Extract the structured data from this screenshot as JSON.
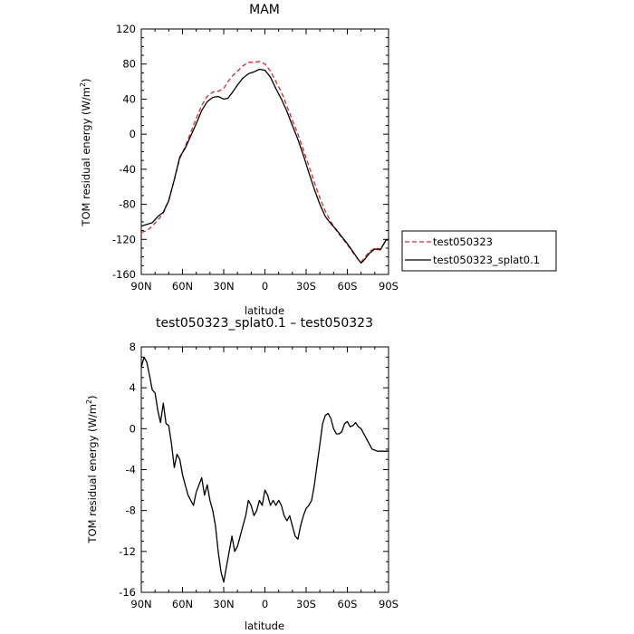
{
  "chart_data": [
    {
      "type": "line",
      "title": "MAM",
      "xlabel": "latitude",
      "ylabel": "TOM residual energy (W/m",
      "ylabel_sup": "2",
      "ylabel_close": ")",
      "xlim": [
        90,
        -90
      ],
      "ylim": [
        -160,
        120
      ],
      "xticks": [
        90,
        60,
        30,
        0,
        -30,
        -60,
        -90
      ],
      "xtick_labels": [
        "90N",
        "60N",
        "30N",
        "0",
        "30S",
        "60S",
        "90S"
      ],
      "yticks": [
        -160,
        -120,
        -80,
        -40,
        0,
        40,
        80,
        120
      ],
      "ytick_labels": [
        "-160",
        "-120",
        "-80",
        "-40",
        "0",
        "40",
        "80",
        "120"
      ],
      "legend": {
        "placement": "right"
      },
      "series": [
        {
          "name": "test050323",
          "color": "#d62728",
          "dash": true,
          "x": [
            90,
            86,
            82,
            78,
            74,
            70,
            66,
            62,
            58,
            54,
            50,
            46,
            42,
            38,
            34,
            30,
            27,
            24,
            20,
            16,
            12,
            8,
            4,
            0,
            -4,
            -8,
            -12,
            -16,
            -20,
            -24,
            -28,
            -32,
            -36,
            -40,
            -44,
            -48,
            -52,
            -56,
            -60,
            -64,
            -68,
            -70,
            -72,
            -76,
            -80,
            -84,
            -88,
            -90
          ],
          "y": [
            -112,
            -110,
            -105,
            -98,
            -90,
            -75,
            -52,
            -28,
            -14,
            2,
            18,
            33,
            43,
            48,
            49,
            52,
            60,
            66,
            72,
            78,
            82,
            82,
            83,
            80,
            72,
            60,
            48,
            32,
            16,
            0,
            -18,
            -36,
            -55,
            -73,
            -88,
            -100,
            -110,
            -118,
            -126,
            -135,
            -143,
            -146,
            -142,
            -134,
            -130,
            -131,
            -122,
            -120
          ]
        },
        {
          "name": "test050323_splat0.1",
          "color": "#000000",
          "dash": false,
          "x": [
            90,
            86,
            82,
            78,
            74,
            70,
            66,
            62,
            58,
            54,
            50,
            46,
            42,
            38,
            34,
            30,
            27,
            24,
            20,
            16,
            12,
            8,
            4,
            0,
            -4,
            -8,
            -12,
            -16,
            -20,
            -24,
            -28,
            -32,
            -36,
            -40,
            -44,
            -48,
            -52,
            -56,
            -60,
            -64,
            -68,
            -70,
            -72,
            -76,
            -80,
            -84,
            -88,
            -90
          ],
          "y": [
            -105,
            -103,
            -101,
            -94,
            -89,
            -76,
            -52,
            -26,
            -16,
            -2,
            12,
            27,
            37,
            42,
            43,
            40,
            41,
            47,
            56,
            64,
            69,
            71,
            74,
            73,
            65,
            52,
            40,
            26,
            10,
            -6,
            -24,
            -44,
            -63,
            -80,
            -94,
            -102,
            -109,
            -117,
            -125,
            -134,
            -143,
            -147,
            -144,
            -136,
            -131,
            -132,
            -121,
            -120
          ]
        }
      ]
    },
    {
      "type": "line",
      "title": "test050323_splat0.1 – test050323",
      "xlabel": "latitude",
      "ylabel": "TOM residual energy (W/m",
      "ylabel_sup": "2",
      "ylabel_close": ")",
      "xlim": [
        90,
        -90
      ],
      "ylim": [
        -16,
        8
      ],
      "xticks": [
        90,
        60,
        30,
        0,
        -30,
        -60,
        -90
      ],
      "xtick_labels": [
        "90N",
        "60N",
        "30N",
        "0",
        "30S",
        "60S",
        "90S"
      ],
      "yticks": [
        -16,
        -12,
        -8,
        -4,
        0,
        4,
        8
      ],
      "ytick_labels": [
        "-16",
        "-12",
        "-8",
        "-4",
        "0",
        "4",
        "8"
      ],
      "series": [
        {
          "name": "",
          "color": "#000000",
          "dash": false,
          "x": [
            90,
            88,
            86,
            84,
            82,
            80,
            78,
            76,
            74,
            72,
            70,
            68,
            66,
            64,
            62,
            60,
            58,
            56,
            54,
            52,
            50,
            48,
            46,
            44,
            42,
            40,
            38,
            36,
            34,
            32,
            30,
            28,
            26,
            24,
            22,
            20,
            18,
            16,
            14,
            12,
            10,
            8,
            6,
            4,
            2,
            0,
            -2,
            -4,
            -6,
            -8,
            -10,
            -12,
            -14,
            -16,
            -18,
            -20,
            -22,
            -24,
            -26,
            -28,
            -30,
            -32,
            -34,
            -36,
            -38,
            -40,
            -42,
            -44,
            -46,
            -48,
            -50,
            -52,
            -54,
            -56,
            -58,
            -60,
            -62,
            -64,
            -66,
            -68,
            -70,
            -72,
            -74,
            -76,
            -78,
            -80,
            -82,
            -84,
            -86,
            -88,
            -90
          ],
          "y": [
            6.0,
            7.0,
            6.5,
            5.2,
            3.8,
            3.5,
            1.8,
            0.6,
            2.5,
            0.5,
            0.3,
            -1.5,
            -3.8,
            -2.5,
            -3.0,
            -4.5,
            -5.5,
            -6.5,
            -7.0,
            -7.5,
            -6.2,
            -5.5,
            -4.8,
            -6.5,
            -5.5,
            -7.0,
            -8.0,
            -9.5,
            -12.0,
            -14.0,
            -15.0,
            -13.5,
            -12.0,
            -10.5,
            -12.0,
            -11.5,
            -10.5,
            -9.5,
            -8.5,
            -7.0,
            -7.5,
            -8.5,
            -8.0,
            -7.0,
            -7.5,
            -6.0,
            -6.5,
            -7.5,
            -7.0,
            -7.5,
            -7.0,
            -7.5,
            -8.5,
            -9.0,
            -8.5,
            -9.5,
            -10.5,
            -10.8,
            -9.5,
            -8.5,
            -7.8,
            -7.5,
            -7.0,
            -5.5,
            -3.5,
            -1.5,
            0.5,
            1.3,
            1.5,
            1.0,
            0.0,
            -0.5,
            -0.5,
            -0.3,
            0.5,
            0.7,
            0.2,
            0.3,
            0.6,
            0.2,
            0.0,
            -0.5,
            -1.0,
            -1.5,
            -2.0,
            -2.1,
            -2.2,
            -2.2,
            -2.2,
            -2.2,
            -2.2
          ]
        }
      ]
    }
  ]
}
